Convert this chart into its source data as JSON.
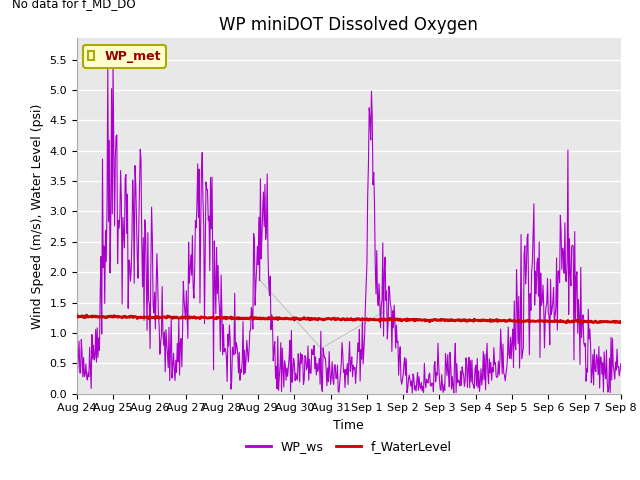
{
  "title": "WP miniDOT Dissolved Oxygen",
  "xlabel": "Time",
  "ylabel": "Wind Speed (m/s), Water Level (psi)",
  "annotation_text": "No data for f_MD_DO",
  "legend_box_label": "WP_met",
  "legend_box_color": "#ffffcc",
  "legend_box_edgecolor": "#aaaa00",
  "legend_box_textcolor": "#990000",
  "ylim": [
    0.0,
    5.85
  ],
  "yticks": [
    0.0,
    0.5,
    1.0,
    1.5,
    2.0,
    2.5,
    3.0,
    3.5,
    4.0,
    4.5,
    5.0,
    5.5
  ],
  "plot_bg_color": "#e8e8e8",
  "ws_color": "#aa00cc",
  "wl_color": "#cc0000",
  "faint_line_color": "#aaaaaa",
  "ws_linewidth": 0.8,
  "wl_linewidth": 2.0,
  "title_fontsize": 12,
  "axis_fontsize": 9,
  "tick_fontsize": 8
}
